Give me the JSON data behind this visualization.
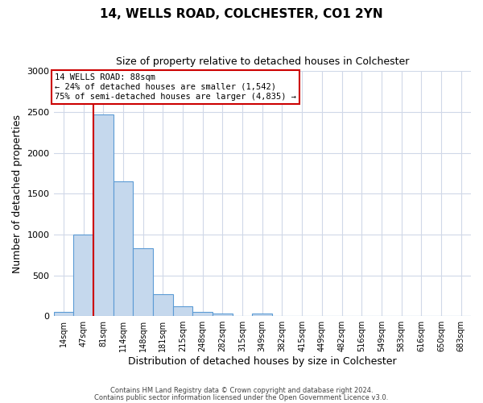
{
  "title": "14, WELLS ROAD, COLCHESTER, CO1 2YN",
  "subtitle": "Size of property relative to detached houses in Colchester",
  "xlabel": "Distribution of detached houses by size in Colchester",
  "ylabel": "Number of detached properties",
  "bin_labels": [
    "14sqm",
    "47sqm",
    "81sqm",
    "114sqm",
    "148sqm",
    "181sqm",
    "215sqm",
    "248sqm",
    "282sqm",
    "315sqm",
    "349sqm",
    "382sqm",
    "415sqm",
    "449sqm",
    "482sqm",
    "516sqm",
    "549sqm",
    "583sqm",
    "616sqm",
    "650sqm",
    "683sqm"
  ],
  "bar_values": [
    50,
    1000,
    2470,
    1650,
    830,
    270,
    120,
    50,
    30,
    0,
    30,
    0,
    0,
    0,
    0,
    0,
    0,
    0,
    0,
    0,
    0
  ],
  "bar_color": "#c5d8ed",
  "bar_edge_color": "#5b9bd5",
  "red_line_x": 2,
  "annotation_title": "14 WELLS ROAD: 88sqm",
  "annotation_line1": "← 24% of detached houses are smaller (1,542)",
  "annotation_line2": "75% of semi-detached houses are larger (4,835) →",
  "annotation_box_color": "#ffffff",
  "annotation_box_edge": "#cc0000",
  "red_line_color": "#cc0000",
  "ylim": [
    0,
    3000
  ],
  "yticks": [
    0,
    500,
    1000,
    1500,
    2000,
    2500,
    3000
  ],
  "footer_line1": "Contains HM Land Registry data © Crown copyright and database right 2024.",
  "footer_line2": "Contains public sector information licensed under the Open Government Licence v3.0.",
  "background_color": "#ffffff",
  "grid_color": "#d0d8e8"
}
